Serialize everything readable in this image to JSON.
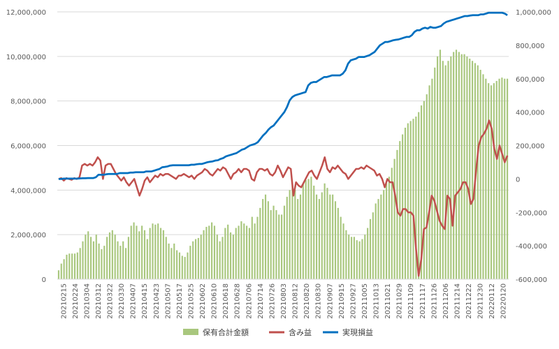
{
  "chart_data": {
    "type": "bar+line",
    "title": "",
    "xlabel": "",
    "ylabel": "",
    "y_left": {
      "min": 0,
      "max": 12000000,
      "step": 2000000,
      "tick_labels": [
        "0",
        "2,000,000",
        "4,000,000",
        "6,000,000",
        "8,000,000",
        "10,000,000",
        "12,000,000"
      ]
    },
    "y_right": {
      "min": -600000,
      "max": 1000000,
      "step": 200000,
      "tick_labels": [
        "-600,000",
        "-400,000",
        "-200,000",
        "0",
        "200,000",
        "400,000",
        "600,000",
        "800,000",
        "1,000,000"
      ]
    },
    "x_tick_labels": [
      "20210215",
      "20210224",
      "20210304",
      "20210312",
      "20210322",
      "20210330",
      "20210407",
      "20210415",
      "20210423",
      "20210507",
      "20210517",
      "20210525",
      "20210602",
      "20210610",
      "20210618",
      "20210628",
      "20210706",
      "20210714",
      "20210726",
      "20210803",
      "20210812",
      "20210820",
      "20210830",
      "20210907",
      "20210915",
      "20210927",
      "20211005",
      "20211013",
      "20211021",
      "20211029",
      "20211109",
      "20211117",
      "20211126",
      "20211206",
      "20211214",
      "20211222",
      "20211230",
      "20220112",
      "20220120"
    ],
    "grid": "horizontal",
    "legend_position": "bottom",
    "legend": [
      "保有合計金額",
      "含み益",
      "実現損益"
    ],
    "colors": {
      "holdings": "#a9c77e",
      "unrealized": "#c0504d",
      "realized": "#0070c0",
      "negative_axis": "#c00000"
    },
    "series": [
      {
        "name": "保有合計金額",
        "axis": "left",
        "kind": "bar",
        "values": [
          400000,
          700000,
          900000,
          1100000,
          1150000,
          1150000,
          1150000,
          1200000,
          1400000,
          1700000,
          2000000,
          2150000,
          1900000,
          1700000,
          2000000,
          1600000,
          1350000,
          1500000,
          1900000,
          2100000,
          2200000,
          2000000,
          1700000,
          1500000,
          1700000,
          1400000,
          1900000,
          2400000,
          2550000,
          2400000,
          2150000,
          2400000,
          2200000,
          1800000,
          2300000,
          2500000,
          2450000,
          2500000,
          2300000,
          2200000,
          1900000,
          1600000,
          1400000,
          1600000,
          1300000,
          1200000,
          1050000,
          1000000,
          1200000,
          1500000,
          1700000,
          1800000,
          1850000,
          2000000,
          2200000,
          2350000,
          2400000,
          2550000,
          2400000,
          2000000,
          1700000,
          1900000,
          2300000,
          2450000,
          2100000,
          2000000,
          2300000,
          2400000,
          2600000,
          2500000,
          2400000,
          2300000,
          2800000,
          2500000,
          2800000,
          3200000,
          3600000,
          3800000,
          3500000,
          3100000,
          3300000,
          3100000,
          2900000,
          2900000,
          3300000,
          3700000,
          4000000,
          4200000,
          4000000,
          3600000,
          3800000,
          4300000,
          4450000,
          4500000,
          4600000,
          4200000,
          3800000,
          3600000,
          3900000,
          4300000,
          4100000,
          3800000,
          3800000,
          3500000,
          3200000,
          2800000,
          2500000,
          2200000,
          2000000,
          1900000,
          1900000,
          1750000,
          1700000,
          1800000,
          2000000,
          2300000,
          2700000,
          3000000,
          3400000,
          3600000,
          3800000,
          4000000,
          4300000,
          4600000,
          5000000,
          5400000,
          5800000,
          6200000,
          6500000,
          6800000,
          7000000,
          7100000,
          7200000,
          7300000,
          7500000,
          7800000,
          8000000,
          8300000,
          8700000,
          9000000,
          9500000,
          10000000,
          10300000,
          9800000,
          9600000,
          9800000,
          10000000,
          10200000,
          10300000,
          10200000,
          10100000,
          10100000,
          10000000,
          9900000,
          9800000,
          9700000,
          9600000,
          9400000,
          9200000,
          9000000,
          8800000,
          8700000,
          8800000,
          8900000,
          9000000,
          9050000,
          9000000,
          9000000
        ]
      },
      {
        "name": "含み益",
        "axis": "right",
        "kind": "line",
        "values": [
          0,
          5000,
          -10000,
          5000,
          0,
          -5000,
          5000,
          0,
          10000,
          80000,
          90000,
          80000,
          90000,
          80000,
          100000,
          130000,
          110000,
          0,
          80000,
          90000,
          90000,
          60000,
          30000,
          10000,
          -10000,
          10000,
          -20000,
          -40000,
          -20000,
          0,
          -50000,
          -100000,
          -60000,
          -10000,
          10000,
          -20000,
          0,
          20000,
          10000,
          30000,
          20000,
          30000,
          30000,
          20000,
          10000,
          0,
          20000,
          20000,
          30000,
          20000,
          10000,
          20000,
          0,
          20000,
          30000,
          40000,
          60000,
          50000,
          30000,
          20000,
          40000,
          60000,
          50000,
          70000,
          60000,
          30000,
          0,
          30000,
          40000,
          60000,
          40000,
          60000,
          60000,
          50000,
          0,
          -10000,
          40000,
          60000,
          60000,
          50000,
          60000,
          30000,
          20000,
          40000,
          80000,
          50000,
          10000,
          40000,
          70000,
          60000,
          -100000,
          -20000,
          -40000,
          -50000,
          -20000,
          10000,
          40000,
          50000,
          20000,
          0,
          40000,
          80000,
          130000,
          60000,
          40000,
          70000,
          60000,
          80000,
          60000,
          40000,
          30000,
          0,
          20000,
          40000,
          60000,
          60000,
          70000,
          60000,
          80000,
          70000,
          60000,
          50000,
          20000,
          30000,
          0,
          -50000,
          0,
          -20000,
          -20000,
          -100000,
          -200000,
          -220000,
          -180000,
          -180000,
          -200000,
          -200000,
          -220000,
          -420000,
          -580000,
          -480000,
          -300000,
          -290000,
          -200000,
          -100000,
          -130000,
          -190000,
          -250000,
          -280000,
          -300000,
          -100000,
          -120000,
          -280000,
          -100000,
          -80000,
          -60000,
          -20000,
          -20000,
          -60000,
          -150000,
          -120000,
          50000,
          200000,
          250000,
          270000,
          300000,
          350000,
          300000,
          180000,
          120000,
          200000,
          150000,
          100000,
          140000
        ]
      },
      {
        "name": "実現損益",
        "axis": "right",
        "kind": "line",
        "values": [
          0,
          0,
          2000,
          2000,
          2000,
          2000,
          2000,
          2000,
          3000,
          4000,
          4000,
          5000,
          5000,
          5000,
          10000,
          25000,
          25000,
          25000,
          28000,
          30000,
          30000,
          30000,
          30000,
          35000,
          35000,
          35000,
          35000,
          38000,
          38000,
          40000,
          40000,
          40000,
          40000,
          45000,
          45000,
          45000,
          50000,
          55000,
          60000,
          70000,
          72000,
          75000,
          80000,
          82000,
          82000,
          82000,
          82000,
          82000,
          82000,
          82000,
          85000,
          85000,
          88000,
          90000,
          90000,
          95000,
          100000,
          103000,
          105000,
          110000,
          112000,
          120000,
          125000,
          135000,
          140000,
          145000,
          150000,
          155000,
          165000,
          175000,
          180000,
          190000,
          200000,
          205000,
          210000,
          220000,
          240000,
          260000,
          275000,
          295000,
          310000,
          320000,
          340000,
          360000,
          380000,
          400000,
          430000,
          470000,
          490000,
          500000,
          505000,
          510000,
          515000,
          520000,
          560000,
          575000,
          580000,
          580000,
          590000,
          600000,
          610000,
          610000,
          615000,
          620000,
          620000,
          620000,
          620000,
          630000,
          650000,
          690000,
          710000,
          715000,
          720000,
          730000,
          730000,
          730000,
          735000,
          740000,
          750000,
          760000,
          780000,
          800000,
          810000,
          820000,
          820000,
          825000,
          830000,
          833000,
          835000,
          840000,
          845000,
          850000,
          850000,
          860000,
          880000,
          890000,
          890000,
          900000,
          905000,
          900000,
          910000,
          905000,
          905000,
          910000,
          915000,
          930000,
          940000,
          945000,
          950000,
          955000,
          960000,
          965000,
          970000,
          975000,
          975000,
          978000,
          980000,
          980000,
          980000,
          985000,
          985000,
          990000,
          995000,
          995000,
          995000,
          995000,
          995000,
          995000,
          990000,
          980000
        ]
      }
    ]
  }
}
